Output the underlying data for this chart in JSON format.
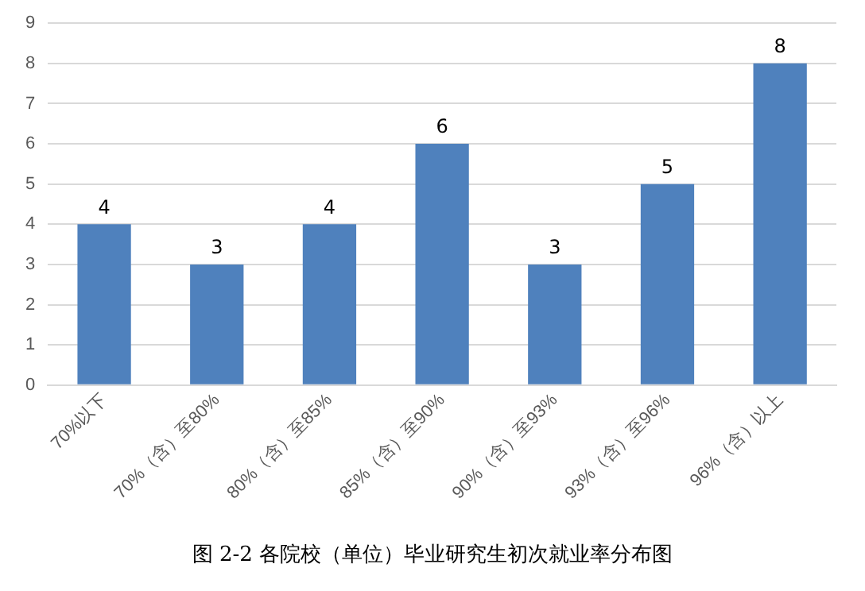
{
  "chart_data": {
    "type": "bar",
    "title": "图 2-2 各院校（单位）毕业研究生初次就业率分布图",
    "categories": [
      "70%以下",
      "70%（含）至80%",
      "80%（含）至85%",
      "85%（含）至90%",
      "90%（含）至93%",
      "93%（含）至96%",
      "96%（含）以上"
    ],
    "values": [
      4,
      3,
      4,
      6,
      3,
      5,
      8
    ],
    "color": "#4f81bd",
    "ylim": [
      0,
      9
    ],
    "yticks": [
      0,
      1,
      2,
      3,
      4,
      5,
      6,
      7,
      8,
      9
    ],
    "grid": "y",
    "data_labels": true
  }
}
